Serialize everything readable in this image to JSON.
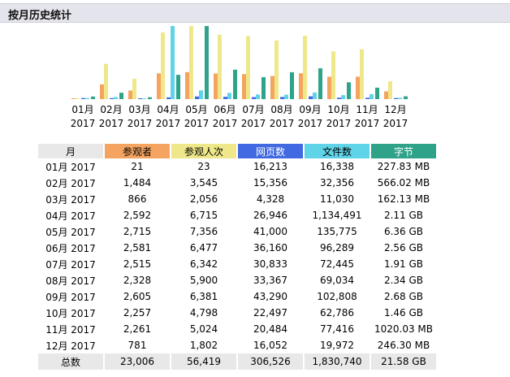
{
  "header": {
    "title": "按月历史统计"
  },
  "colors": {
    "visitors": "#f4a460",
    "visits": "#eee88a",
    "pages": "#4169e1",
    "hits": "#5fd3e8",
    "bytes": "#2ea38a"
  },
  "table": {
    "headers": {
      "month": "月",
      "visitors": "参观者",
      "visits": "参观人次",
      "pages": "网页数",
      "hits": "文件数",
      "bytes": "字节"
    },
    "rows": [
      {
        "month": "01月 2017",
        "visitors": "21",
        "visits": "23",
        "pages": "16,213",
        "hits": "16,338",
        "bytes": "227.83 MB"
      },
      {
        "month": "02月 2017",
        "visitors": "1,484",
        "visits": "3,545",
        "pages": "15,356",
        "hits": "32,356",
        "bytes": "566.02 MB"
      },
      {
        "month": "03月 2017",
        "visitors": "866",
        "visits": "2,056",
        "pages": "4,328",
        "hits": "11,030",
        "bytes": "162.13 MB"
      },
      {
        "month": "04月 2017",
        "visitors": "2,592",
        "visits": "6,715",
        "pages": "26,946",
        "hits": "1,134,491",
        "bytes": "2.11 GB"
      },
      {
        "month": "05月 2017",
        "visitors": "2,715",
        "visits": "7,356",
        "pages": "41,000",
        "hits": "135,775",
        "bytes": "6.36 GB"
      },
      {
        "month": "06月 2017",
        "visitors": "2,581",
        "visits": "6,477",
        "pages": "36,160",
        "hits": "96,289",
        "bytes": "2.56 GB"
      },
      {
        "month": "07月 2017",
        "visitors": "2,515",
        "visits": "6,342",
        "pages": "30,833",
        "hits": "72,445",
        "bytes": "1.91 GB"
      },
      {
        "month": "08月 2017",
        "visitors": "2,328",
        "visits": "5,900",
        "pages": "33,367",
        "hits": "69,034",
        "bytes": "2.34 GB"
      },
      {
        "month": "09月 2017",
        "visitors": "2,605",
        "visits": "6,381",
        "pages": "43,290",
        "hits": "102,808",
        "bytes": "2.68 GB"
      },
      {
        "month": "10月 2017",
        "visitors": "2,257",
        "visits": "4,798",
        "pages": "22,497",
        "hits": "62,786",
        "bytes": "1.46 GB"
      },
      {
        "month": "11月 2017",
        "visitors": "2,261",
        "visits": "5,024",
        "pages": "20,484",
        "hits": "77,416",
        "bytes": "1020.03 MB"
      },
      {
        "month": "12月 2017",
        "visitors": "781",
        "visits": "1,802",
        "pages": "16,052",
        "hits": "19,972",
        "bytes": "246.30 MB"
      }
    ],
    "total": {
      "label": "总数",
      "visitors": "23,006",
      "visits": "56,419",
      "pages": "306,526",
      "hits": "1,830,740",
      "bytes": "21.58 GB"
    }
  },
  "chart_data": {
    "type": "bar",
    "categories": [
      [
        "01月",
        "2017"
      ],
      [
        "02月",
        "2017"
      ],
      [
        "03月",
        "2017"
      ],
      [
        "04月",
        "2017"
      ],
      [
        "05月",
        "2017"
      ],
      [
        "06月",
        "2017"
      ],
      [
        "07月",
        "2017"
      ],
      [
        "08月",
        "2017"
      ],
      [
        "09月",
        "2017"
      ],
      [
        "10月",
        "2017"
      ],
      [
        "11月",
        "2017"
      ],
      [
        "12月",
        "2017"
      ]
    ],
    "series": [
      {
        "key": "visitors",
        "values": [
          21,
          1484,
          866,
          2592,
          2715,
          2581,
          2515,
          2328,
          2605,
          2257,
          2261,
          781
        ]
      },
      {
        "key": "visits",
        "values": [
          23,
          3545,
          2056,
          6715,
          7356,
          6477,
          6342,
          5900,
          6381,
          4798,
          5024,
          1802
        ]
      },
      {
        "key": "pages",
        "values": [
          16213,
          15356,
          4328,
          26946,
          41000,
          36160,
          30833,
          33367,
          43290,
          22497,
          20484,
          16052
        ]
      },
      {
        "key": "hits",
        "values": [
          16338,
          32356,
          11030,
          1134491,
          135775,
          96289,
          72445,
          69034,
          102808,
          62786,
          77416,
          19972
        ]
      },
      {
        "key": "bytes_mb",
        "values": [
          227.83,
          566.02,
          162.13,
          2160.64,
          6512.64,
          2621.44,
          1955.84,
          2396.16,
          2744.32,
          1495.04,
          1020.03,
          246.3
        ]
      }
    ],
    "legend": "none",
    "grid": false
  }
}
